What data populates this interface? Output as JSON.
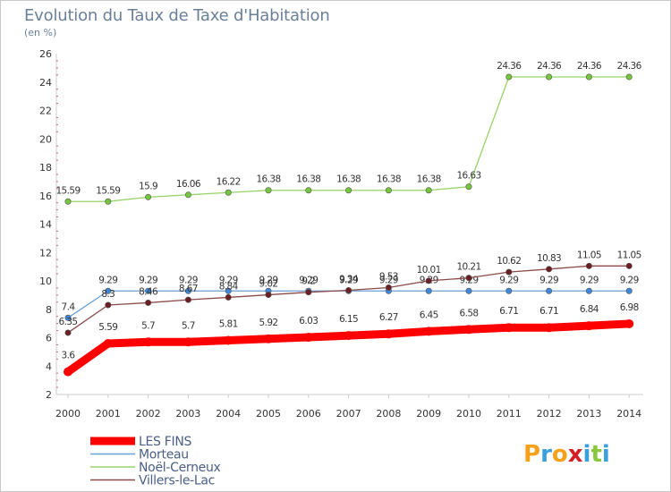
{
  "title": "Evolution du Taux de Taxe d'Habitation",
  "unit": "(en %)",
  "logo": {
    "text": "Proxiti",
    "letters": [
      {
        "ch": "P",
        "color": "#f5a11c"
      },
      {
        "ch": "r",
        "color": "#3aa0dc"
      },
      {
        "ch": "o",
        "color": "#f5a11c"
      },
      {
        "ch": "x",
        "color": "#d21f26"
      },
      {
        "ch": "i",
        "color": "#3aa0dc"
      },
      {
        "ch": "t",
        "color": "#8cc63f"
      },
      {
        "ch": "i",
        "color": "#3aa0dc"
      }
    ]
  },
  "chart_data": {
    "type": "line",
    "title": "Evolution du Taux de Taxe d'Habitation",
    "ylabel": "(en %)",
    "xlabel": "",
    "ylim": [
      2,
      26
    ],
    "yticks": [
      2,
      4,
      6,
      8,
      10,
      12,
      14,
      16,
      18,
      20,
      22,
      24,
      26
    ],
    "grid": false,
    "legend_position": "bottom-left",
    "x": [
      2000,
      2001,
      2002,
      2003,
      2004,
      2005,
      2006,
      2007,
      2008,
      2009,
      2010,
      2011,
      2012,
      2013,
      2014
    ],
    "series": [
      {
        "name": "Morteau",
        "color": "#6a9fd6",
        "marker": "#3f87d8",
        "labels": [
          "7.4",
          "9.29",
          "9.29",
          "9.29",
          "9.29",
          "9.29",
          "9.29",
          "9.29",
          "9.29",
          "9.29",
          "9.29",
          "9.29",
          "9.29",
          "9.29",
          "9.29"
        ],
        "values": [
          7.4,
          9.29,
          9.29,
          9.29,
          9.29,
          9.29,
          9.29,
          9.29,
          9.29,
          9.29,
          9.29,
          9.29,
          9.29,
          9.29,
          9.29
        ]
      },
      {
        "name": "Noël-Cerneux",
        "color": "#98d36a",
        "marker": "#74c63c",
        "labels": [
          "15.59",
          "15.59",
          "15.9",
          "16.06",
          "16.22",
          "16.38",
          "16.38",
          "16.38",
          "16.38",
          "16.38",
          "16.63",
          "24.36",
          "24.36",
          "24.36",
          "24.36"
        ],
        "values": [
          15.59,
          15.59,
          15.9,
          16.06,
          16.22,
          16.38,
          16.38,
          16.38,
          16.38,
          16.38,
          16.63,
          24.36,
          24.36,
          24.36,
          24.36
        ]
      },
      {
        "name": "Villers-le-Lac",
        "color": "#8a4a4a",
        "marker": "#6b1f24",
        "labels": [
          "6.35",
          "8.3",
          "8.46",
          "8.67",
          "8.84",
          "9.02",
          "9.2",
          "9.34",
          "9.53",
          "10.01",
          "10.21",
          "10.62",
          "10.83",
          "11.05",
          "11.05"
        ],
        "values": [
          6.35,
          8.3,
          8.46,
          8.67,
          8.84,
          9.02,
          9.2,
          9.34,
          9.53,
          10.01,
          10.21,
          10.62,
          10.83,
          11.05,
          11.05
        ]
      },
      {
        "name": "LES FINS",
        "color": "#ff0000",
        "marker": "#ff0000",
        "thick": true,
        "labels": [
          "3.6",
          "5.59",
          "5.7",
          "5.7",
          "5.81",
          "5.92",
          "6.03",
          "6.15",
          "6.27",
          "6.45",
          "6.58",
          "6.71",
          "6.71",
          "6.84",
          "6.98"
        ],
        "values": [
          3.6,
          5.59,
          5.7,
          5.7,
          5.81,
          5.92,
          6.03,
          6.15,
          6.27,
          6.45,
          6.58,
          6.71,
          6.71,
          6.84,
          6.98
        ]
      }
    ],
    "legend_order": [
      "LES FINS",
      "Morteau",
      "Noël-Cerneux",
      "Villers-le-Lac"
    ]
  }
}
